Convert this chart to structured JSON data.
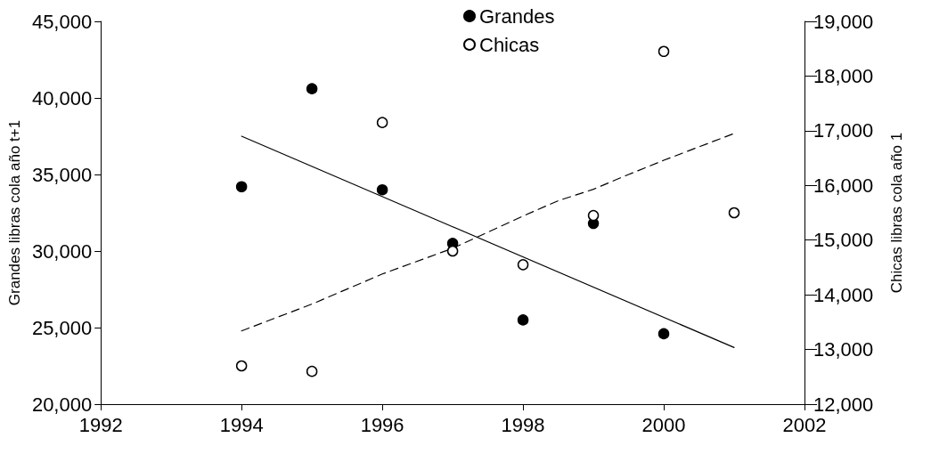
{
  "chart_data": {
    "type": "scatter",
    "ylabel": "Grandes libras cola año t+1",
    "y2label": "Chicas libras cola año 1",
    "xlim": [
      1992,
      2002
    ],
    "xticks": [
      1992,
      1994,
      1996,
      1998,
      2000,
      2002
    ],
    "ylim": [
      20000,
      45000
    ],
    "yticks": [
      {
        "value": 20000,
        "label": "20,000"
      },
      {
        "value": 25000,
        "label": "25,000"
      },
      {
        "value": 30000,
        "label": "30,000"
      },
      {
        "value": 35000,
        "label": "35,000"
      },
      {
        "value": 40000,
        "label": "40,000"
      },
      {
        "value": 45000,
        "label": "45,000"
      }
    ],
    "y2lim": [
      12000,
      19000
    ],
    "y2ticks": [
      {
        "value": 12000,
        "label": "12,000"
      },
      {
        "value": 13000,
        "label": "13,000"
      },
      {
        "value": 14000,
        "label": "14,000"
      },
      {
        "value": 15000,
        "label": "15,000"
      },
      {
        "value": 16000,
        "label": "16,000"
      },
      {
        "value": 17000,
        "label": "17,000"
      },
      {
        "value": 18000,
        "label": "18,000"
      },
      {
        "value": 19000,
        "label": "19,000"
      }
    ],
    "grid": false,
    "legend": "top",
    "marker": "circle",
    "series": [
      {
        "name": "Grandes",
        "color": "#000000",
        "x": [
          1994,
          1995,
          1996,
          1997,
          1998,
          1999,
          2000
        ],
        "values": [
          34200,
          40600,
          34000,
          30500,
          25500,
          31800,
          24600
        ]
      },
      {
        "name": "Chicas",
        "color": "#ffffff",
        "axis": "y2",
        "x": [
          1994,
          1995,
          1996,
          1997,
          1998,
          1999,
          2000,
          2001
        ],
        "values": [
          12700,
          12600,
          17150,
          14800,
          14550,
          15450,
          18450,
          15500
        ]
      },
      {
        "type": "line",
        "color": "#000000",
        "line_style": "solid",
        "marker": "none",
        "x": [
          1994,
          2001
        ],
        "values": [
          37500,
          23700
        ]
      },
      {
        "type": "line",
        "color": "#000000",
        "line_style": "dashed",
        "marker": "none",
        "axis": "y2",
        "x": [
          1994,
          1995,
          1996,
          1997,
          1998,
          1998.5,
          1999,
          1999.5,
          2000,
          2001
        ],
        "values": [
          13340,
          13830,
          14380,
          14850,
          15440,
          15720,
          15930,
          16200,
          16460,
          16950
        ]
      }
    ]
  }
}
